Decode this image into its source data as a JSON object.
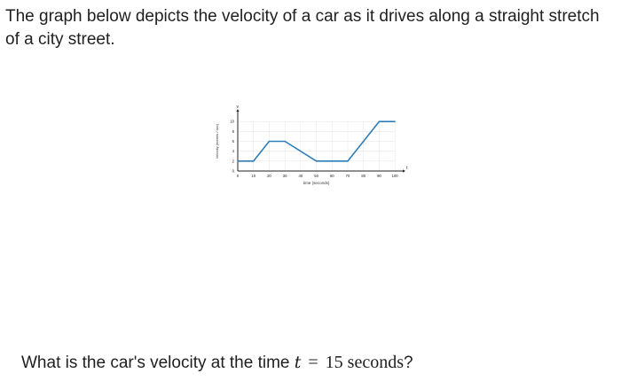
{
  "prompt": {
    "text": "The graph below depicts the velocity of a car as it drives along a straight stretch of a city street."
  },
  "question": {
    "prefix": "What is the car's velocity at the time ",
    "variable": "t",
    "equals": "=",
    "value": "15 seconds",
    "suffix": "?"
  },
  "chart_data": {
    "type": "line",
    "xlabel": "time (seconds)",
    "ylabel": "Velocity (meters / sec)",
    "x_axis_letter": "t",
    "y_axis_letter": "v",
    "xlim": [
      0,
      105
    ],
    "ylim": [
      0,
      12
    ],
    "x_ticks": [
      0,
      10,
      20,
      30,
      40,
      50,
      60,
      70,
      80,
      90,
      100
    ],
    "y_ticks": [
      0,
      2,
      4,
      6,
      8,
      10
    ],
    "grid": true,
    "series": [
      {
        "color": "#2e7db8",
        "x": [
          0,
          10,
          20,
          30,
          50,
          70,
          90,
          100
        ],
        "y": [
          2,
          2,
          6,
          6,
          2,
          2,
          10,
          10
        ]
      }
    ]
  }
}
